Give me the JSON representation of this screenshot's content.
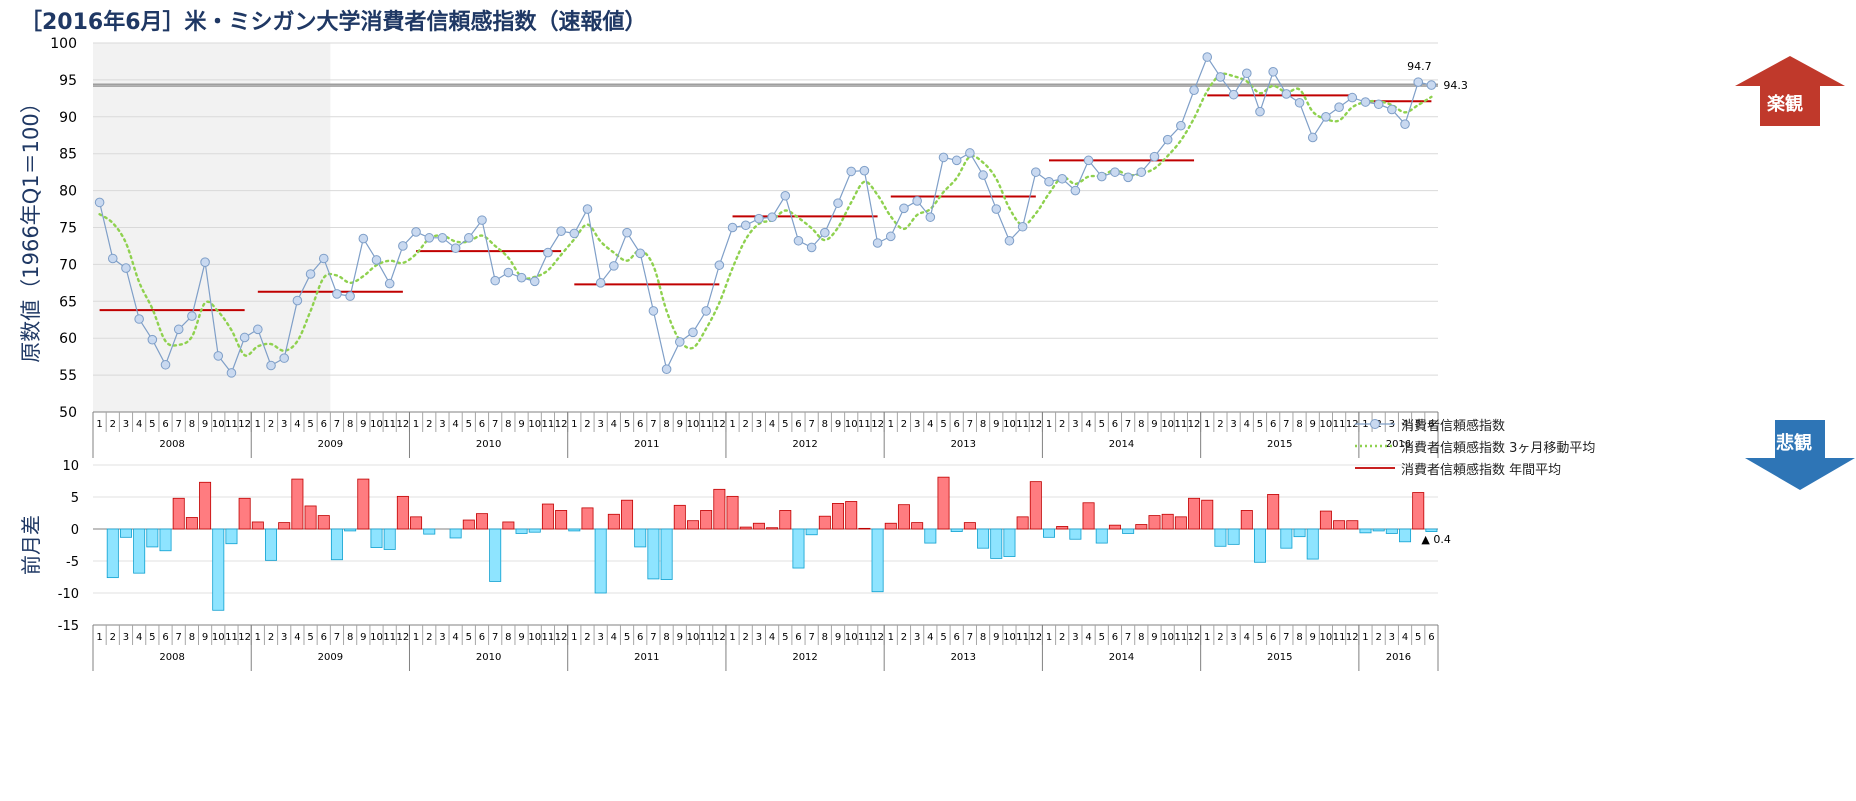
{
  "title": "［2016年6月］米・ミシガン大学消費者信頼感指数（速報値）",
  "colors": {
    "index_line": "#7f9fc8",
    "index_marker_fill": "#c9d9f0",
    "moving_avg": "#8fd14f",
    "annual_avg": "#c00000",
    "positive_bar": "#ff7c80",
    "negative_bar": "#8ee4ff",
    "bar_border_pos": "#c00000",
    "bar_border_neg": "#0fa0d0",
    "shade": "#f2f2f2",
    "up_arrow": "#c0392b",
    "down_arrow": "#2e75b6"
  },
  "arrows": {
    "up_label": "楽観",
    "down_label": "悲観"
  },
  "legend": {
    "index": "消費者信頼感指数",
    "moving_avg": "消費者信頼感指数 3ヶ月移動平均",
    "annual_avg": "消費者信頼感指数 年間平均"
  },
  "chart_data": [
    {
      "type": "line",
      "ylabel": "原数値（1966年Q1＝100）",
      "ylim": [
        50,
        100
      ],
      "yticks": [
        50,
        55,
        60,
        65,
        70,
        75,
        80,
        85,
        90,
        95,
        100
      ],
      "years": [
        "2008",
        "2009",
        "2010",
        "2011",
        "2012",
        "2013",
        "2014",
        "2015",
        "2016"
      ],
      "months_per_year": [
        12,
        12,
        12,
        12,
        12,
        12,
        12,
        12,
        6
      ],
      "month_labels": [
        "1",
        "2",
        "3",
        "4",
        "5",
        "6",
        "7",
        "8",
        "9",
        "10",
        "11",
        "12"
      ],
      "reference_line": 94.3,
      "annotations": [
        {
          "text": "94.7",
          "index": 101
        },
        {
          "text": "94.3",
          "index": 101
        }
      ],
      "series": [
        {
          "name": "消費者信頼感指数",
          "values": [
            78.4,
            70.8,
            69.5,
            62.6,
            59.8,
            56.4,
            61.2,
            63.0,
            70.3,
            57.6,
            55.3,
            60.1,
            61.2,
            56.3,
            57.3,
            65.1,
            68.7,
            70.8,
            66.0,
            65.7,
            73.5,
            70.6,
            67.4,
            72.5,
            74.4,
            73.6,
            73.6,
            72.2,
            73.6,
            76.0,
            67.8,
            68.9,
            68.2,
            67.7,
            71.6,
            74.5,
            74.2,
            77.5,
            67.5,
            69.8,
            74.3,
            71.5,
            63.7,
            55.8,
            59.5,
            60.8,
            63.7,
            69.9,
            75.0,
            75.3,
            76.2,
            76.4,
            79.3,
            73.2,
            72.3,
            74.3,
            78.3,
            82.6,
            82.7,
            72.9,
            73.8,
            77.6,
            78.6,
            76.4,
            84.5,
            84.1,
            85.1,
            82.1,
            77.5,
            73.2,
            75.1,
            82.5,
            81.2,
            81.6,
            80.0,
            84.1,
            81.9,
            82.5,
            81.8,
            82.5,
            84.6,
            86.9,
            88.8,
            93.6,
            98.1,
            95.4,
            93.0,
            95.9,
            90.7,
            96.1,
            93.1,
            91.9,
            87.2,
            90.0,
            91.3,
            92.6,
            92.0,
            91.7,
            91.0,
            89.0,
            94.7,
            94.3
          ]
        },
        {
          "name": "消費者信頼感指数 3ヶ月移動平均",
          "values": [
            76.8,
            75.6,
            72.9,
            67.6,
            64.0,
            59.6,
            59.1,
            60.2,
            64.8,
            63.6,
            61.1,
            57.7,
            58.9,
            59.2,
            58.3,
            59.6,
            63.7,
            68.2,
            68.5,
            67.5,
            68.4,
            69.9,
            70.5,
            70.2,
            71.4,
            73.5,
            73.9,
            73.1,
            73.1,
            73.9,
            72.5,
            70.9,
            68.3,
            68.3,
            69.2,
            71.3,
            73.4,
            75.4,
            73.1,
            71.6,
            70.5,
            71.9,
            69.8,
            63.7,
            59.7,
            58.7,
            61.3,
            64.8,
            69.5,
            73.4,
            75.5,
            76.0,
            77.3,
            76.3,
            74.9,
            73.3,
            75.0,
            78.4,
            81.2,
            79.4,
            76.5,
            74.8,
            76.7,
            77.5,
            79.8,
            81.7,
            84.6,
            83.8,
            81.6,
            77.6,
            75.3,
            76.9,
            79.6,
            81.8,
            80.9,
            81.9,
            82.0,
            82.8,
            82.1,
            82.3,
            83.0,
            84.7,
            86.8,
            89.8,
            93.5,
            95.7,
            95.5,
            94.8,
            93.2,
            94.2,
            93.3,
            93.7,
            90.7,
            89.7,
            89.5,
            91.3,
            92.0,
            92.1,
            91.6,
            90.6,
            91.6,
            92.7
          ]
        },
        {
          "name": "消費者信頼感指数 年間平均",
          "type": "step",
          "segments": [
            {
              "year": "2008",
              "value": 63.8
            },
            {
              "year": "2009",
              "value": 66.3
            },
            {
              "year": "2010",
              "value": 71.8
            },
            {
              "year": "2011",
              "value": 67.3
            },
            {
              "year": "2012",
              "value": 76.5
            },
            {
              "year": "2013",
              "value": 79.2
            },
            {
              "year": "2014",
              "value": 84.1
            },
            {
              "year": "2015",
              "value": 92.9
            },
            {
              "year": "2016",
              "value": 92.1
            }
          ]
        }
      ]
    },
    {
      "type": "bar",
      "ylabel": "前月差",
      "ylim": [
        -15,
        10
      ],
      "yticks": [
        -15,
        -10,
        -5,
        0,
        5,
        10
      ],
      "annotation": "▲ 0.4",
      "values": [
        0,
        -7.6,
        -1.3,
        -6.9,
        -2.8,
        -3.4,
        4.8,
        1.8,
        7.3,
        -12.7,
        -2.3,
        4.8,
        1.1,
        -4.9,
        1.0,
        7.8,
        3.6,
        2.1,
        -4.8,
        -0.3,
        7.8,
        -2.9,
        -3.2,
        5.1,
        1.9,
        -0.8,
        0.0,
        -1.4,
        1.4,
        2.4,
        -8.2,
        1.1,
        -0.7,
        -0.5,
        3.9,
        2.9,
        -0.3,
        3.3,
        -10.0,
        2.3,
        4.5,
        -2.8,
        -7.8,
        -7.9,
        3.7,
        1.3,
        2.9,
        6.2,
        5.1,
        0.3,
        0.9,
        0.2,
        2.9,
        -6.1,
        -0.9,
        2.0,
        4.0,
        4.3,
        0.1,
        -9.8,
        0.9,
        3.8,
        1.0,
        -2.2,
        8.1,
        -0.4,
        1.0,
        -3.0,
        -4.6,
        -4.3,
        1.9,
        7.4,
        -1.3,
        0.4,
        -1.6,
        4.1,
        -2.2,
        0.6,
        -0.7,
        0.7,
        2.1,
        2.3,
        1.9,
        4.8,
        4.5,
        -2.7,
        -2.4,
        2.9,
        -5.2,
        5.4,
        -3.0,
        -1.2,
        -4.7,
        2.8,
        1.3,
        1.3,
        -0.6,
        -0.3,
        -0.7,
        -2.0,
        5.7,
        -0.4
      ]
    }
  ]
}
